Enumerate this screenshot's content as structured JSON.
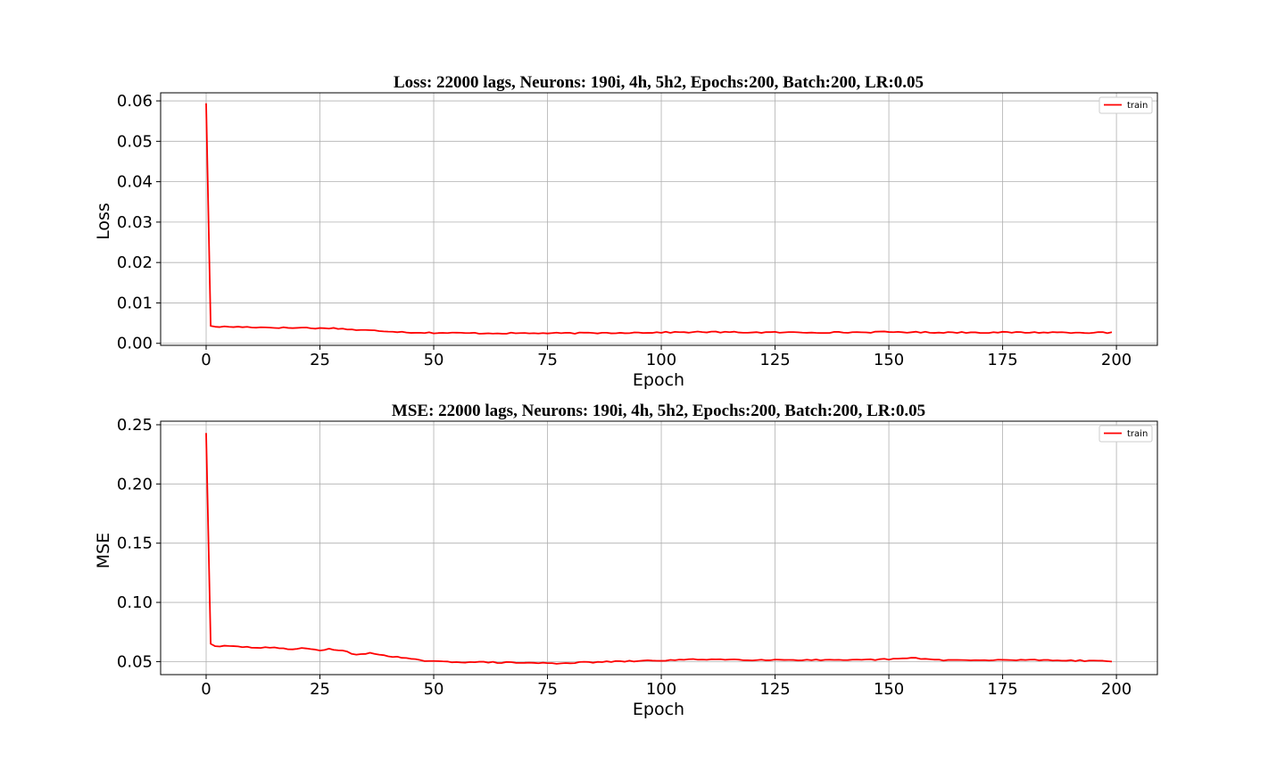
{
  "chart_data": [
    {
      "type": "line",
      "title": "Loss: 22000 lags, Neurons: 190i, 4h, 5h2, Epochs:200, Batch:200, LR:0.05",
      "xlabel": "Epoch",
      "ylabel": "Loss",
      "xlim": [
        -10,
        209
      ],
      "ylim": [
        -0.0005,
        0.062
      ],
      "xticks": [
        0,
        25,
        50,
        75,
        100,
        125,
        150,
        175,
        200
      ],
      "xtick_labels": [
        "0",
        "25",
        "50",
        "75",
        "100",
        "125",
        "150",
        "175",
        "200"
      ],
      "yticks": [
        0.0,
        0.01,
        0.02,
        0.03,
        0.04,
        0.05,
        0.06
      ],
      "ytick_labels": [
        "0.00",
        "0.01",
        "0.02",
        "0.03",
        "0.04",
        "0.05",
        "0.06"
      ],
      "grid": true,
      "legend_position": "top-right",
      "series": [
        {
          "name": "train",
          "color": "#ff0000",
          "keypoints": [
            [
              0,
              0.0594
            ],
            [
              1,
              0.0043
            ],
            [
              2,
              0.0041
            ],
            [
              5,
              0.0041
            ],
            [
              10,
              0.004
            ],
            [
              15,
              0.0039
            ],
            [
              20,
              0.0038
            ],
            [
              21,
              0.0039
            ],
            [
              25,
              0.0037
            ],
            [
              27,
              0.0038
            ],
            [
              30,
              0.0036
            ],
            [
              33,
              0.0033
            ],
            [
              36,
              0.0032
            ],
            [
              40,
              0.003
            ],
            [
              45,
              0.0027
            ],
            [
              50,
              0.0026
            ],
            [
              60,
              0.0025
            ],
            [
              70,
              0.0025
            ],
            [
              80,
              0.0025
            ],
            [
              90,
              0.0026
            ],
            [
              100,
              0.0027
            ],
            [
              110,
              0.0028
            ],
            [
              120,
              0.0027
            ],
            [
              130,
              0.0027
            ],
            [
              140,
              0.0027
            ],
            [
              150,
              0.0028
            ],
            [
              160,
              0.0027
            ],
            [
              170,
              0.0027
            ],
            [
              180,
              0.0027
            ],
            [
              190,
              0.0027
            ],
            [
              199,
              0.0026
            ]
          ]
        }
      ]
    },
    {
      "type": "line",
      "title": "MSE: 22000 lags, Neurons: 190i, 4h, 5h2, Epochs:200, Batch:200, LR:0.05",
      "xlabel": "Epoch",
      "ylabel": "MSE",
      "xlim": [
        -10,
        209
      ],
      "ylim": [
        0.039,
        0.253
      ],
      "xticks": [
        0,
        25,
        50,
        75,
        100,
        125,
        150,
        175,
        200
      ],
      "xtick_labels": [
        "0",
        "25",
        "50",
        "75",
        "100",
        "125",
        "150",
        "175",
        "200"
      ],
      "yticks": [
        0.05,
        0.1,
        0.15,
        0.2,
        0.25
      ],
      "ytick_labels": [
        "0.05",
        "0.10",
        "0.15",
        "0.20",
        "0.25"
      ],
      "grid": true,
      "legend_position": "top-right",
      "series": [
        {
          "name": "train",
          "color": "#ff0000",
          "keypoints": [
            [
              0,
              0.243
            ],
            [
              1,
              0.065
            ],
            [
              2,
              0.063
            ],
            [
              5,
              0.063
            ],
            [
              10,
              0.062
            ],
            [
              15,
              0.0615
            ],
            [
              20,
              0.0605
            ],
            [
              21,
              0.062
            ],
            [
              25,
              0.059
            ],
            [
              27,
              0.061
            ],
            [
              30,
              0.059
            ],
            [
              33,
              0.056
            ],
            [
              36,
              0.057
            ],
            [
              40,
              0.055
            ],
            [
              45,
              0.052
            ],
            [
              50,
              0.05
            ],
            [
              60,
              0.0495
            ],
            [
              70,
              0.049
            ],
            [
              77,
              0.0485
            ],
            [
              80,
              0.049
            ],
            [
              90,
              0.05
            ],
            [
              100,
              0.051
            ],
            [
              110,
              0.052
            ],
            [
              120,
              0.0515
            ],
            [
              130,
              0.0515
            ],
            [
              140,
              0.051
            ],
            [
              150,
              0.052
            ],
            [
              156,
              0.053
            ],
            [
              160,
              0.0515
            ],
            [
              170,
              0.051
            ],
            [
              180,
              0.0515
            ],
            [
              190,
              0.051
            ],
            [
              199,
              0.0505
            ]
          ]
        }
      ]
    }
  ]
}
